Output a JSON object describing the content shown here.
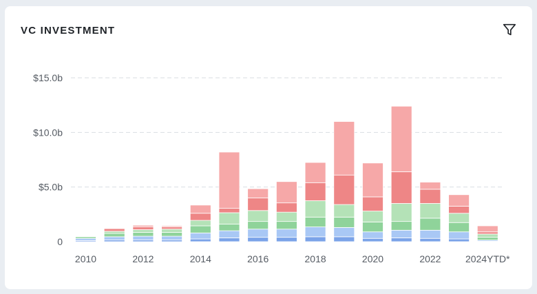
{
  "card": {
    "title": "VC INVESTMENT",
    "filter_icon": "filter-icon"
  },
  "chart_data": {
    "type": "bar",
    "stacked": true,
    "categories": [
      "2010",
      "2011",
      "2012",
      "2013",
      "2014",
      "2015",
      "2016",
      "2017",
      "2018",
      "2019",
      "2020",
      "2021",
      "2022",
      "2023",
      "2024YTD*"
    ],
    "x_tick_labels": [
      "2010",
      "",
      "2012",
      "",
      "2014",
      "",
      "2016",
      "",
      "2018",
      "",
      "2020",
      "",
      "2022",
      "",
      "2024YTD*"
    ],
    "y_ticks": [
      {
        "value": 0,
        "label": "0"
      },
      {
        "value": 5,
        "label": "$5.0b"
      },
      {
        "value": 10,
        "label": "$10.0b"
      },
      {
        "value": 15,
        "label": "$15.0b"
      }
    ],
    "ylim": [
      0,
      15
    ],
    "grid": true,
    "legend": "none",
    "series": [
      {
        "color": "#7ba3e8",
        "values": [
          0.1,
          0.15,
          0.15,
          0.15,
          0.25,
          0.35,
          0.4,
          0.4,
          0.45,
          0.45,
          0.3,
          0.35,
          0.3,
          0.25,
          0.05
        ]
      },
      {
        "color": "#a9c8f5",
        "values": [
          0.2,
          0.3,
          0.35,
          0.35,
          0.55,
          0.65,
          0.75,
          0.75,
          0.9,
          0.85,
          0.6,
          0.7,
          0.75,
          0.65,
          0.1
        ]
      },
      {
        "color": "#8fd39a",
        "values": [
          0.15,
          0.3,
          0.35,
          0.35,
          0.65,
          0.6,
          0.7,
          0.7,
          0.9,
          0.95,
          0.9,
          0.8,
          1.1,
          0.85,
          0.25
        ]
      },
      {
        "color": "#b4e2b7",
        "values": [
          0.05,
          0.2,
          0.25,
          0.3,
          0.5,
          1.05,
          1.0,
          0.85,
          1.5,
          1.15,
          1.0,
          1.65,
          1.35,
          0.85,
          0.3
        ]
      },
      {
        "color": "#ee8686",
        "values": [
          0.05,
          0.25,
          0.25,
          0.2,
          0.65,
          0.4,
          1.15,
          0.85,
          1.65,
          2.7,
          1.3,
          2.9,
          1.3,
          0.65,
          0.2
        ]
      },
      {
        "color": "#f6a8a8",
        "values": [
          0.05,
          0.05,
          0.15,
          0.1,
          0.75,
          5.15,
          0.85,
          1.95,
          1.85,
          4.9,
          3.1,
          6.0,
          0.65,
          1.05,
          0.55
        ]
      }
    ]
  }
}
